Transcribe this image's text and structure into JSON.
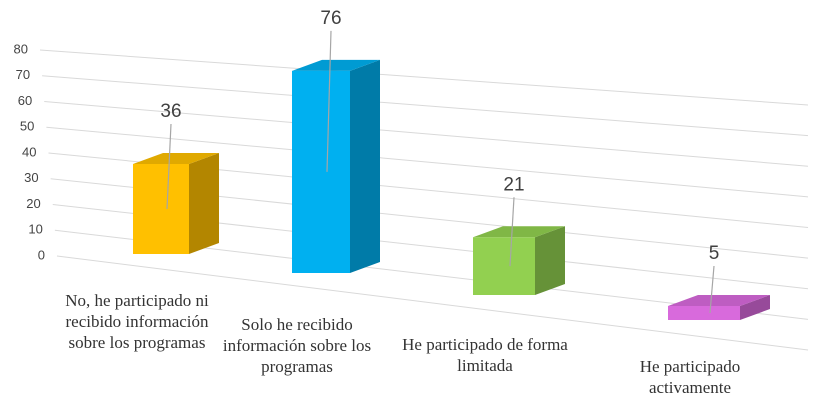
{
  "chart_data": {
    "type": "bar3d",
    "categories": [
      "No,  he participado ni recibido información sobre los programas",
      "Solo he recibido información sobre los programas",
      "He participado de forma limitada",
      "He participado activamente"
    ],
    "values": [
      36,
      76,
      21,
      5
    ],
    "colors": [
      "#FFC000",
      "#00B0F0",
      "#92D050",
      "#D86ADC"
    ],
    "ylim": [
      0,
      80
    ],
    "yticks": [
      0,
      10,
      20,
      30,
      40,
      50,
      60,
      70,
      80
    ],
    "grid": true
  }
}
